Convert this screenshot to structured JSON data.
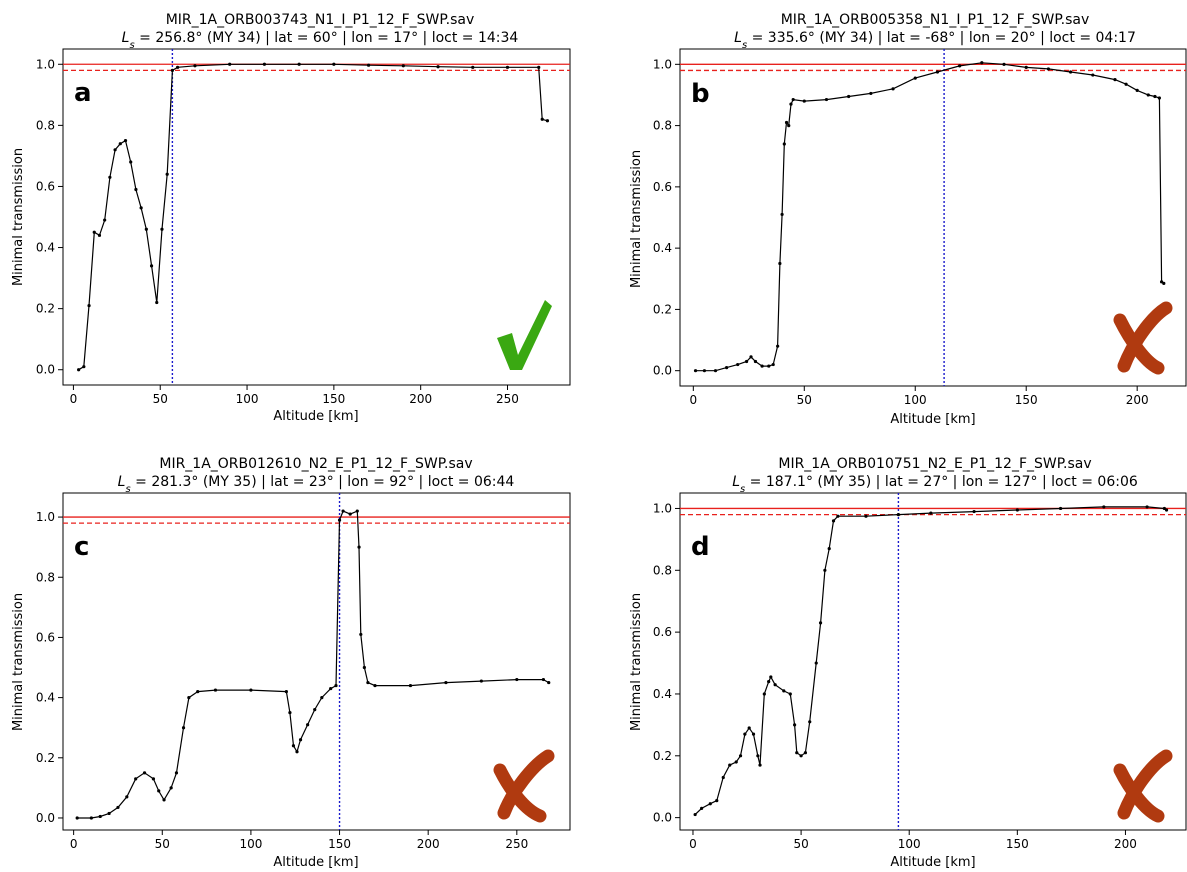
{
  "figure": {
    "axis_xlabel": "Altitude [km]",
    "axis_ylabel": "Minimal transmission"
  },
  "chart_data": [
    {
      "type": "line",
      "panel_label": "a",
      "title_line1": "MIR_1A_ORB003743_N1_I_P1_12_F_SWP.sav",
      "title_ls_prefix": "L",
      "title_ls_sub": "s",
      "title_line2_rest": " = 256.8° (MY 34) | lat = 60° | lon = 17° | loct = 14:34",
      "xlabel": "Altitude [km]",
      "ylabel": "Minimal transmission",
      "xlim": [
        -6,
        286
      ],
      "ylim": [
        -0.05,
        1.05
      ],
      "xticks": [
        0,
        50,
        100,
        150,
        200,
        250
      ],
      "yticks": [
        0.0,
        0.2,
        0.4,
        0.6,
        0.8,
        1.0
      ],
      "xtick_labels": [
        "0",
        "50",
        "100",
        "150",
        "200",
        "250"
      ],
      "ytick_labels": [
        "0.0",
        "0.2",
        "0.4",
        "0.6",
        "0.8",
        "1.0"
      ],
      "hline_solid": 1.0,
      "hline_dashed": 0.98,
      "vline": 57,
      "verdict": "check",
      "points": [
        [
          3,
          0.0
        ],
        [
          6,
          0.01
        ],
        [
          9,
          0.21
        ],
        [
          12,
          0.45
        ],
        [
          15,
          0.44
        ],
        [
          18,
          0.49
        ],
        [
          21,
          0.63
        ],
        [
          24,
          0.72
        ],
        [
          27,
          0.74
        ],
        [
          30,
          0.75
        ],
        [
          33,
          0.68
        ],
        [
          36,
          0.59
        ],
        [
          39,
          0.53
        ],
        [
          42,
          0.46
        ],
        [
          45,
          0.34
        ],
        [
          48,
          0.22
        ],
        [
          51,
          0.46
        ],
        [
          54,
          0.64
        ],
        [
          57,
          0.98
        ],
        [
          60,
          0.99
        ],
        [
          70,
          0.995
        ],
        [
          90,
          1.0
        ],
        [
          110,
          1.0
        ],
        [
          130,
          1.0
        ],
        [
          150,
          1.0
        ],
        [
          170,
          0.997
        ],
        [
          190,
          0.995
        ],
        [
          210,
          0.992
        ],
        [
          230,
          0.99
        ],
        [
          250,
          0.99
        ],
        [
          268,
          0.99
        ],
        [
          270,
          0.82
        ],
        [
          273,
          0.815
        ]
      ]
    },
    {
      "type": "line",
      "panel_label": "b",
      "title_line1": "MIR_1A_ORB005358_N1_I_P1_12_F_SWP.sav",
      "title_ls_prefix": "L",
      "title_ls_sub": "s",
      "title_line2_rest": " = 335.6° (MY 34) | lat = -68° | lon = 20° | loct = 04:17",
      "xlabel": "Altitude [km]",
      "ylabel": "Minimal transmission",
      "xlim": [
        -6,
        222
      ],
      "ylim": [
        -0.05,
        1.05
      ],
      "xticks": [
        0,
        50,
        100,
        150,
        200
      ],
      "yticks": [
        0.0,
        0.2,
        0.4,
        0.6,
        0.8,
        1.0
      ],
      "xtick_labels": [
        "0",
        "50",
        "100",
        "150",
        "200"
      ],
      "ytick_labels": [
        "0.0",
        "0.2",
        "0.4",
        "0.6",
        "0.8",
        "1.0"
      ],
      "hline_solid": 1.0,
      "hline_dashed": 0.98,
      "vline": 113,
      "verdict": "cross",
      "points": [
        [
          1,
          0.0
        ],
        [
          5,
          0.0
        ],
        [
          10,
          0.0
        ],
        [
          15,
          0.01
        ],
        [
          20,
          0.02
        ],
        [
          24,
          0.03
        ],
        [
          26,
          0.045
        ],
        [
          28,
          0.03
        ],
        [
          31,
          0.015
        ],
        [
          34,
          0.015
        ],
        [
          36,
          0.02
        ],
        [
          38,
          0.08
        ],
        [
          39,
          0.35
        ],
        [
          40,
          0.51
        ],
        [
          41,
          0.74
        ],
        [
          42,
          0.81
        ],
        [
          43,
          0.8
        ],
        [
          44,
          0.87
        ],
        [
          45,
          0.885
        ],
        [
          50,
          0.88
        ],
        [
          60,
          0.885
        ],
        [
          70,
          0.895
        ],
        [
          80,
          0.905
        ],
        [
          90,
          0.92
        ],
        [
          100,
          0.955
        ],
        [
          110,
          0.975
        ],
        [
          120,
          0.995
        ],
        [
          130,
          1.005
        ],
        [
          140,
          1.0
        ],
        [
          150,
          0.99
        ],
        [
          160,
          0.985
        ],
        [
          170,
          0.975
        ],
        [
          180,
          0.965
        ],
        [
          190,
          0.95
        ],
        [
          195,
          0.935
        ],
        [
          200,
          0.915
        ],
        [
          205,
          0.9
        ],
        [
          208,
          0.895
        ],
        [
          210,
          0.89
        ],
        [
          211,
          0.29
        ],
        [
          212,
          0.285
        ]
      ]
    },
    {
      "type": "line",
      "panel_label": "c",
      "title_line1": "MIR_1A_ORB012610_N2_E_P1_12_F_SWP.sav",
      "title_ls_prefix": "L",
      "title_ls_sub": "s",
      "title_line2_rest": " = 281.3° (MY 35) | lat = 23° | lon = 92° | loct = 06:44",
      "xlabel": "Altitude [km]",
      "ylabel": "Minimal transmission",
      "xlim": [
        -6,
        280
      ],
      "ylim": [
        -0.04,
        1.08
      ],
      "xticks": [
        0,
        50,
        100,
        150,
        200,
        250
      ],
      "yticks": [
        0.0,
        0.2,
        0.4,
        0.6,
        0.8,
        1.0
      ],
      "xtick_labels": [
        "0",
        "50",
        "100",
        "150",
        "200",
        "250"
      ],
      "ytick_labels": [
        "0.0",
        "0.2",
        "0.4",
        "0.6",
        "0.8",
        "1.0"
      ],
      "hline_solid": 1.0,
      "hline_dashed": 0.98,
      "vline": 150,
      "verdict": "cross",
      "points": [
        [
          2,
          0.0
        ],
        [
          10,
          0.0
        ],
        [
          15,
          0.005
        ],
        [
          20,
          0.015
        ],
        [
          25,
          0.035
        ],
        [
          30,
          0.07
        ],
        [
          35,
          0.13
        ],
        [
          40,
          0.15
        ],
        [
          45,
          0.13
        ],
        [
          48,
          0.09
        ],
        [
          51,
          0.06
        ],
        [
          55,
          0.1
        ],
        [
          58,
          0.15
        ],
        [
          62,
          0.3
        ],
        [
          65,
          0.4
        ],
        [
          70,
          0.42
        ],
        [
          80,
          0.425
        ],
        [
          100,
          0.425
        ],
        [
          120,
          0.42
        ],
        [
          122,
          0.35
        ],
        [
          124,
          0.24
        ],
        [
          126,
          0.22
        ],
        [
          128,
          0.26
        ],
        [
          132,
          0.31
        ],
        [
          136,
          0.36
        ],
        [
          140,
          0.4
        ],
        [
          145,
          0.43
        ],
        [
          148,
          0.44
        ],
        [
          150,
          0.99
        ],
        [
          152,
          1.02
        ],
        [
          156,
          1.01
        ],
        [
          160,
          1.02
        ],
        [
          161,
          0.9
        ],
        [
          162,
          0.61
        ],
        [
          164,
          0.5
        ],
        [
          166,
          0.45
        ],
        [
          170,
          0.44
        ],
        [
          190,
          0.44
        ],
        [
          210,
          0.45
        ],
        [
          230,
          0.455
        ],
        [
          250,
          0.46
        ],
        [
          265,
          0.46
        ],
        [
          268,
          0.45
        ]
      ]
    },
    {
      "type": "line",
      "panel_label": "d",
      "title_line1": "MIR_1A_ORB010751_N2_E_P1_12_F_SWP.sav",
      "title_ls_prefix": "L",
      "title_ls_sub": "s",
      "title_line2_rest": " = 187.1° (MY 35) | lat = 27° | lon = 127° | loct = 06:06",
      "xlabel": "Altitude [km]",
      "ylabel": "Minimal transmission",
      "xlim": [
        -6,
        228
      ],
      "ylim": [
        -0.04,
        1.05
      ],
      "xticks": [
        0,
        50,
        100,
        150,
        200
      ],
      "yticks": [
        0.0,
        0.2,
        0.4,
        0.6,
        0.8,
        1.0
      ],
      "xtick_labels": [
        "0",
        "50",
        "100",
        "150",
        "200"
      ],
      "ytick_labels": [
        "0.0",
        "0.2",
        "0.4",
        "0.6",
        "0.8",
        "1.0"
      ],
      "hline_solid": 1.0,
      "hline_dashed": 0.98,
      "vline": 95,
      "verdict": "cross",
      "points": [
        [
          1,
          0.01
        ],
        [
          4,
          0.03
        ],
        [
          8,
          0.045
        ],
        [
          11,
          0.055
        ],
        [
          14,
          0.13
        ],
        [
          17,
          0.17
        ],
        [
          20,
          0.18
        ],
        [
          22,
          0.2
        ],
        [
          24,
          0.27
        ],
        [
          26,
          0.29
        ],
        [
          28,
          0.27
        ],
        [
          30,
          0.2
        ],
        [
          31,
          0.17
        ],
        [
          33,
          0.4
        ],
        [
          35,
          0.44
        ],
        [
          36,
          0.455
        ],
        [
          38,
          0.43
        ],
        [
          42,
          0.41
        ],
        [
          45,
          0.4
        ],
        [
          47,
          0.3
        ],
        [
          48,
          0.21
        ],
        [
          50,
          0.2
        ],
        [
          52,
          0.21
        ],
        [
          54,
          0.31
        ],
        [
          57,
          0.5
        ],
        [
          59,
          0.63
        ],
        [
          61,
          0.8
        ],
        [
          63,
          0.87
        ],
        [
          65,
          0.96
        ],
        [
          67,
          0.975
        ],
        [
          80,
          0.975
        ],
        [
          95,
          0.98
        ],
        [
          110,
          0.985
        ],
        [
          130,
          0.99
        ],
        [
          150,
          0.995
        ],
        [
          170,
          1.0
        ],
        [
          190,
          1.005
        ],
        [
          210,
          1.005
        ],
        [
          218,
          1.0
        ],
        [
          219,
          0.995
        ]
      ]
    }
  ]
}
